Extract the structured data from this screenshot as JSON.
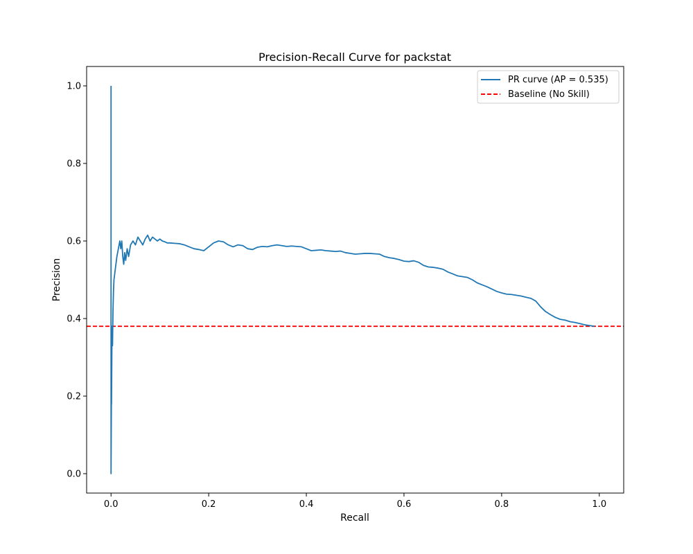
{
  "chart_data": {
    "type": "line",
    "title": "Precision-Recall Curve for packstat",
    "xlabel": "Recall",
    "ylabel": "Precision",
    "xlim": [
      -0.05,
      1.05
    ],
    "ylim": [
      -0.05,
      1.05
    ],
    "xticks": [
      0.0,
      0.2,
      0.4,
      0.6,
      0.8,
      1.0
    ],
    "xtick_labels": [
      "0.0",
      "0.2",
      "0.4",
      "0.6",
      "0.8",
      "1.0"
    ],
    "yticks": [
      0.0,
      0.2,
      0.4,
      0.6,
      0.8,
      1.0
    ],
    "ytick_labels": [
      "0.0",
      "0.2",
      "0.4",
      "0.6",
      "0.8",
      "1.0"
    ],
    "grid": false,
    "legend_position": "top-right",
    "series": [
      {
        "name": "PR curve (AP = 0.535)",
        "color": "#1f77b4",
        "style": "solid",
        "x": [
          0.0,
          0.0,
          0.001,
          0.001,
          0.002,
          0.003,
          0.004,
          0.005,
          0.006,
          0.008,
          0.01,
          0.012,
          0.015,
          0.018,
          0.02,
          0.022,
          0.024,
          0.026,
          0.028,
          0.03,
          0.033,
          0.036,
          0.04,
          0.045,
          0.05,
          0.055,
          0.06,
          0.065,
          0.07,
          0.075,
          0.08,
          0.085,
          0.09,
          0.095,
          0.1,
          0.105,
          0.11,
          0.115,
          0.12,
          0.13,
          0.14,
          0.15,
          0.16,
          0.17,
          0.18,
          0.19,
          0.2,
          0.21,
          0.22,
          0.23,
          0.24,
          0.25,
          0.26,
          0.27,
          0.28,
          0.29,
          0.3,
          0.31,
          0.32,
          0.33,
          0.34,
          0.35,
          0.36,
          0.37,
          0.38,
          0.39,
          0.4,
          0.41,
          0.42,
          0.43,
          0.44,
          0.45,
          0.46,
          0.47,
          0.48,
          0.49,
          0.5,
          0.51,
          0.52,
          0.53,
          0.54,
          0.55,
          0.56,
          0.57,
          0.58,
          0.59,
          0.6,
          0.61,
          0.62,
          0.63,
          0.64,
          0.65,
          0.66,
          0.67,
          0.68,
          0.69,
          0.7,
          0.71,
          0.72,
          0.73,
          0.74,
          0.75,
          0.76,
          0.77,
          0.78,
          0.79,
          0.8,
          0.81,
          0.82,
          0.83,
          0.84,
          0.85,
          0.86,
          0.87,
          0.88,
          0.89,
          0.9,
          0.91,
          0.92,
          0.93,
          0.94,
          0.95,
          0.96,
          0.97,
          0.98,
          0.99
        ],
        "y": [
          1.0,
          0.0,
          0.25,
          0.18,
          0.38,
          0.33,
          0.42,
          0.47,
          0.5,
          0.52,
          0.54,
          0.56,
          0.58,
          0.6,
          0.58,
          0.6,
          0.56,
          0.54,
          0.57,
          0.55,
          0.58,
          0.56,
          0.59,
          0.6,
          0.59,
          0.61,
          0.6,
          0.59,
          0.605,
          0.615,
          0.6,
          0.61,
          0.605,
          0.6,
          0.605,
          0.6,
          0.598,
          0.595,
          0.595,
          0.594,
          0.593,
          0.59,
          0.585,
          0.58,
          0.578,
          0.575,
          0.585,
          0.595,
          0.6,
          0.598,
          0.59,
          0.585,
          0.59,
          0.588,
          0.58,
          0.578,
          0.584,
          0.586,
          0.585,
          0.588,
          0.59,
          0.588,
          0.586,
          0.587,
          0.586,
          0.585,
          0.58,
          0.575,
          0.576,
          0.577,
          0.575,
          0.574,
          0.573,
          0.574,
          0.57,
          0.568,
          0.566,
          0.567,
          0.568,
          0.568,
          0.567,
          0.566,
          0.56,
          0.557,
          0.555,
          0.552,
          0.548,
          0.547,
          0.549,
          0.545,
          0.537,
          0.533,
          0.532,
          0.53,
          0.527,
          0.52,
          0.515,
          0.51,
          0.508,
          0.506,
          0.5,
          0.492,
          0.487,
          0.482,
          0.476,
          0.47,
          0.466,
          0.463,
          0.462,
          0.46,
          0.458,
          0.455,
          0.452,
          0.445,
          0.43,
          0.418,
          0.41,
          0.403,
          0.398,
          0.396,
          0.392,
          0.39,
          0.387,
          0.384,
          0.382,
          0.38
        ]
      },
      {
        "name": "Baseline (No Skill)",
        "color": "#ff0000",
        "style": "dashed",
        "y_value": 0.38
      }
    ]
  }
}
